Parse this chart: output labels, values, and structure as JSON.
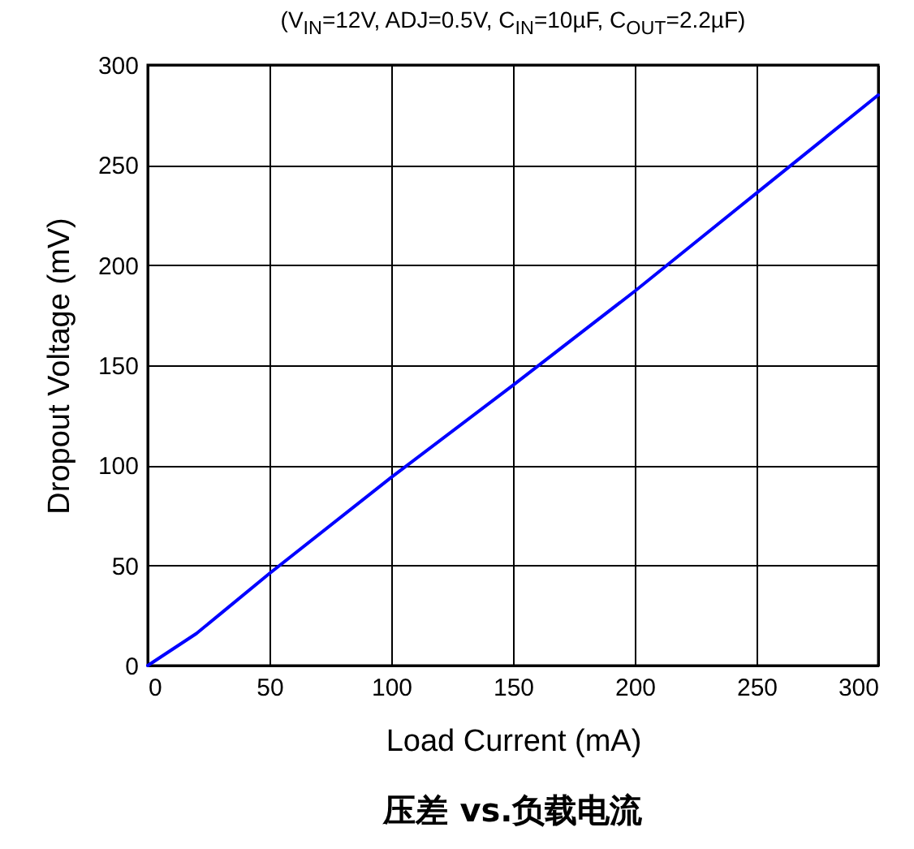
{
  "chart_data": {
    "type": "line",
    "subtitle": "(V$_{IN}$=12V, ADJ=0.5V, C$_{IN}$=10µF, C$_{OUT}$=2.2µF)",
    "title": "压差 vs.负载电流",
    "xlabel": "Load Current (mA)",
    "ylabel": "Dropout Voltage (mV)",
    "x": [
      0,
      10,
      20,
      30,
      50,
      100,
      150,
      200,
      250,
      300
    ],
    "series": [
      {
        "color": "#0000ff",
        "values": [
          0,
          8,
          16,
          26,
          46,
          94,
          140,
          187,
          236,
          285
        ]
      }
    ],
    "xlim": [
      0,
      300
    ],
    "xticks": [
      0,
      50,
      100,
      150,
      200,
      250,
      300
    ],
    "ylim": [
      0,
      300
    ],
    "yticks": [
      0,
      50,
      100,
      150,
      200,
      250,
      300
    ],
    "grid": true,
    "line_style": "solid"
  }
}
